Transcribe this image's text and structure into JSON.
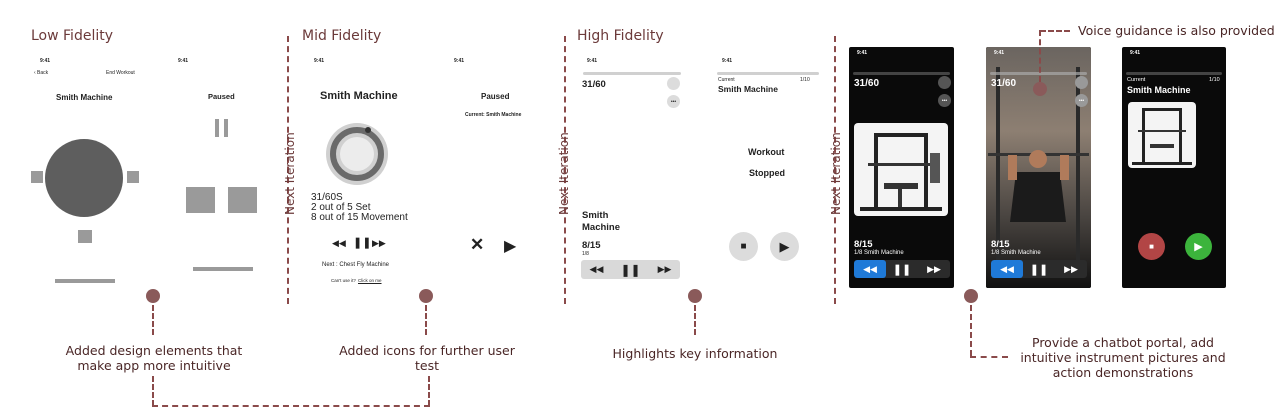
{
  "stages": {
    "low": "Low Fidelity",
    "mid": "Mid Fidelity",
    "high": "High Fidelity"
  },
  "next_iteration": "Next Iteration",
  "annotations": {
    "low": "Added design elements that make app more intuitive",
    "mid": "Added icons for further user test",
    "high": "Highlights key information",
    "final": "Provide a chatbot portal, add intuitive instrument pictures and action demonstrations",
    "voice": "Voice guidance is also provided"
  },
  "status_time": "9:41",
  "status_icons": "▂▄ ◠ ▭",
  "low_fi": {
    "back": "‹ Back",
    "end_workout": "End Workout",
    "title": "Smith Machine",
    "paused": "Paused"
  },
  "mid_fi": {
    "title": "Smith Machine",
    "timer": "31/60S",
    "sets": "2 out of 5 Set",
    "movement": "8 out of 15 Movement",
    "next": "Next : Chest Fly Machine",
    "cant_use": "Can't use it?",
    "click_on_me": "Click on me",
    "paused": "Paused",
    "current": "Current: Smith Machine"
  },
  "high_fi": {
    "timer": "31/60",
    "equipment": "Smith Machine",
    "count": "8/15",
    "sub": "1/8",
    "current": "Current",
    "current_name": "Smith Machine",
    "progress": "1/10",
    "stopped_line1": "Workout",
    "stopped_line2": "Stopped"
  },
  "final": {
    "timer": "31/60",
    "count": "8/15",
    "sub": "1/8 Smith Machine",
    "current": "Current",
    "current_name": "Smith Machine",
    "progress": "1/10"
  },
  "icons": {
    "rewind": "◀◀",
    "pause": "❚❚",
    "forward": "▶▶",
    "play": "▶",
    "stop": "■",
    "close": "✕",
    "more": "•••"
  },
  "colors": {
    "accent": "#8a4a4a",
    "blue": "#1f7ad8",
    "stop_red": "#b24545",
    "play_green": "#3cb43c"
  }
}
